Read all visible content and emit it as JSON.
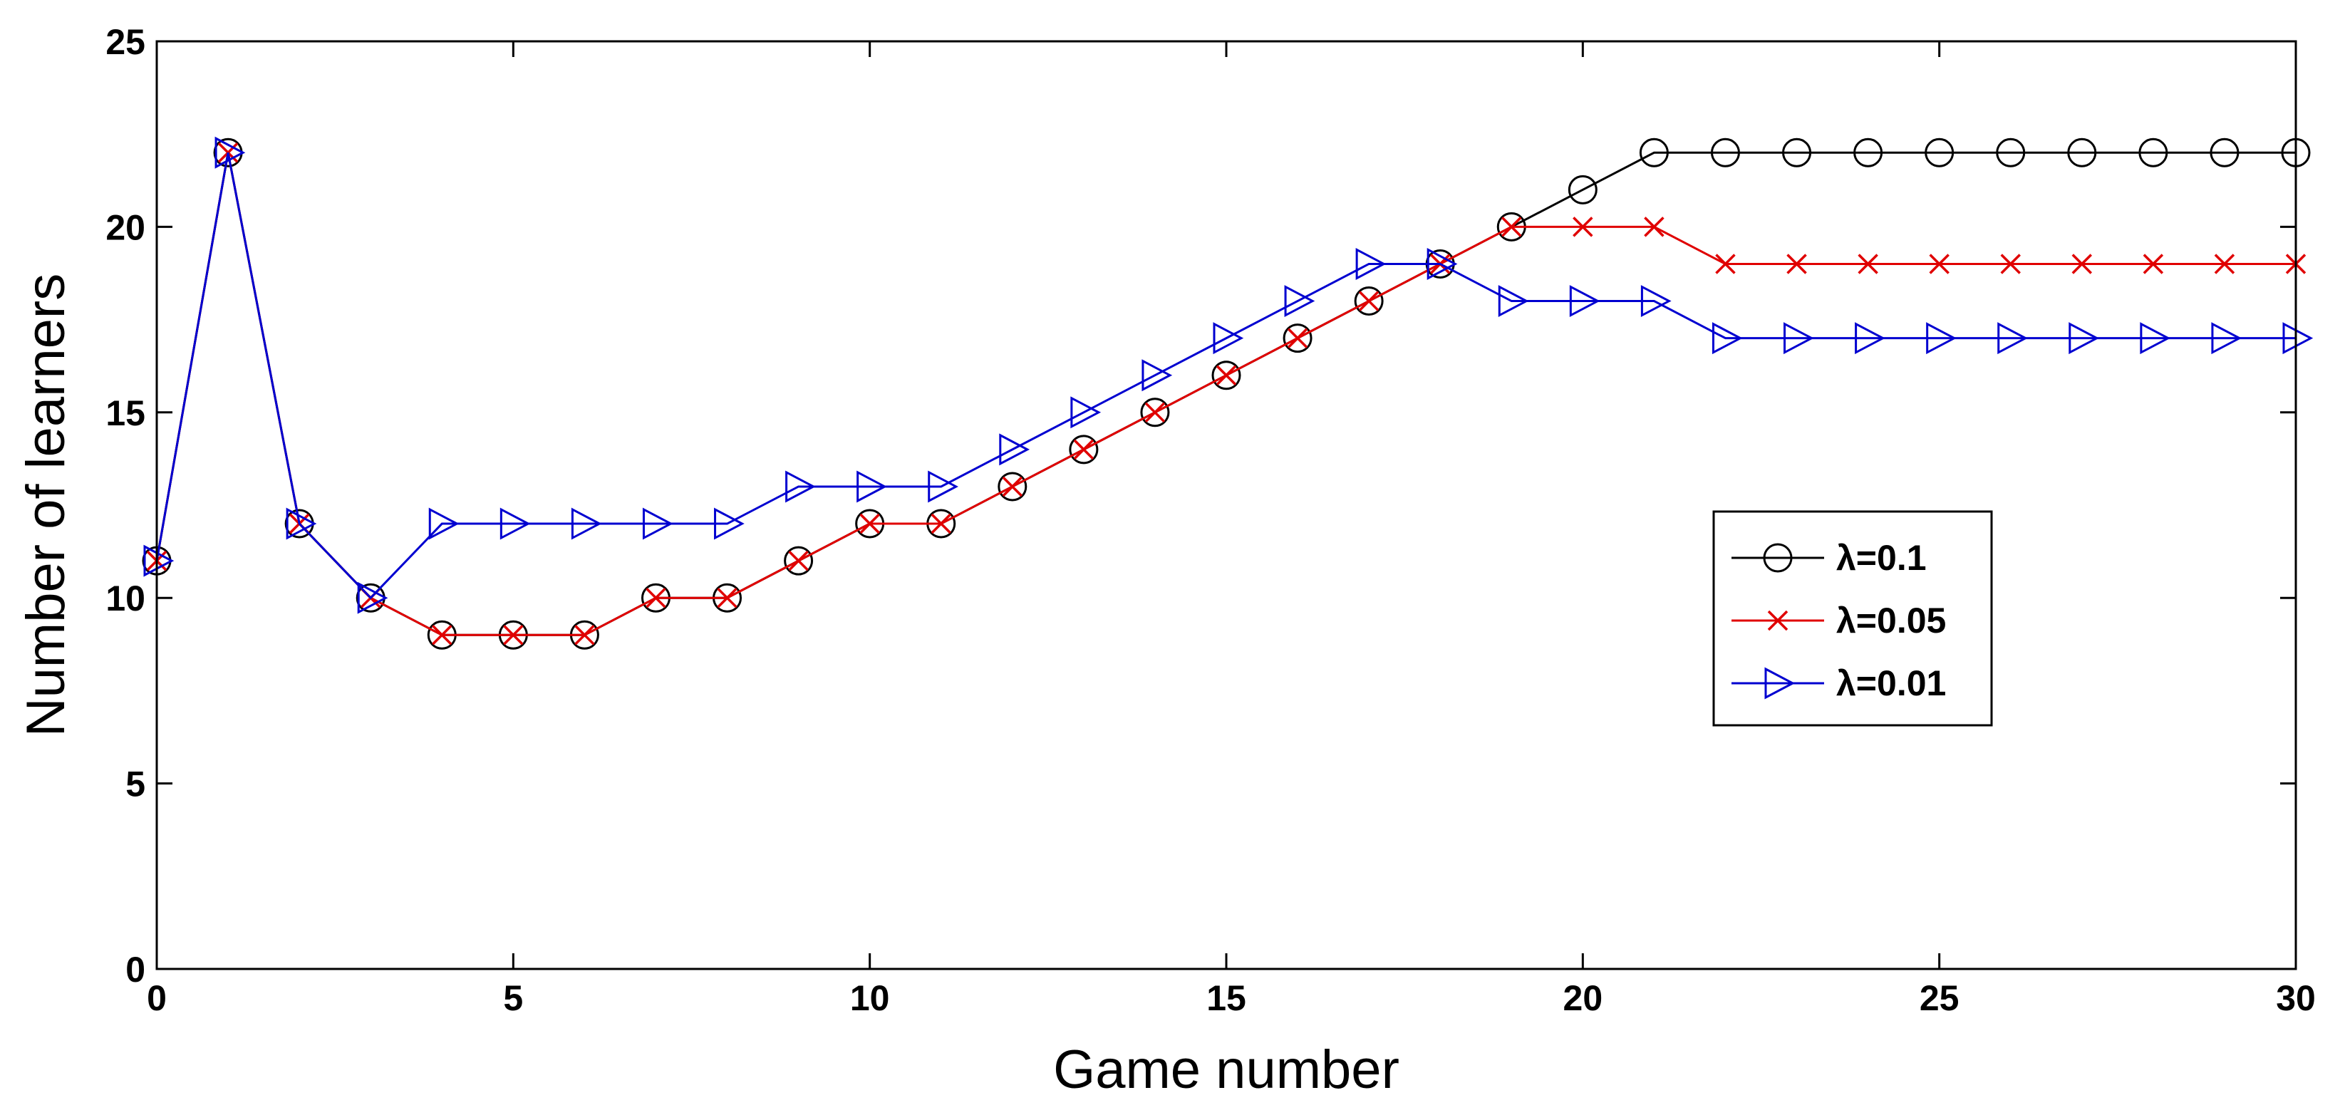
{
  "chart_data": {
    "type": "line",
    "title": "",
    "xlabel": "Game number",
    "ylabel": "Number of learners",
    "xlim": [
      0,
      30
    ],
    "ylim": [
      0,
      25
    ],
    "xticks": [
      0,
      5,
      10,
      15,
      20,
      25,
      30
    ],
    "yticks": [
      0,
      5,
      10,
      15,
      20,
      25
    ],
    "xtick_labels": [
      "0",
      "5",
      "10",
      "15",
      "20",
      "25",
      "30"
    ],
    "ytick_labels": [
      "0",
      "5",
      "10",
      "15",
      "20",
      "25"
    ],
    "grid": false,
    "legend_position": "right",
    "x": [
      0,
      1,
      2,
      3,
      4,
      5,
      6,
      7,
      8,
      9,
      10,
      11,
      12,
      13,
      14,
      15,
      16,
      17,
      18,
      19,
      20,
      21,
      22,
      23,
      24,
      25,
      26,
      27,
      28,
      29,
      30
    ],
    "series": [
      {
        "name": "λ=0.1",
        "color": "#000000",
        "marker": "circle",
        "values": [
          11,
          22,
          12,
          10,
          9,
          9,
          9,
          10,
          10,
          11,
          12,
          12,
          13,
          14,
          15,
          16,
          17,
          18,
          19,
          20,
          21,
          22,
          22,
          22,
          22,
          22,
          22,
          22,
          22,
          22,
          22
        ]
      },
      {
        "name": "λ=0.05",
        "color": "#e00000",
        "marker": "x",
        "values": [
          11,
          22,
          12,
          10,
          9,
          9,
          9,
          10,
          10,
          11,
          12,
          12,
          13,
          14,
          15,
          16,
          17,
          18,
          19,
          20,
          20,
          20,
          19,
          19,
          19,
          19,
          19,
          19,
          19,
          19,
          19
        ]
      },
      {
        "name": "λ=0.01",
        "color": "#0000d0",
        "marker": "triangle-right",
        "values": [
          11,
          22,
          12,
          10,
          12,
          12,
          12,
          12,
          12,
          13,
          13,
          13,
          14,
          15,
          16,
          17,
          18,
          19,
          19,
          18,
          18,
          18,
          17,
          17,
          17,
          17,
          17,
          17,
          17,
          17,
          17
        ]
      }
    ]
  }
}
